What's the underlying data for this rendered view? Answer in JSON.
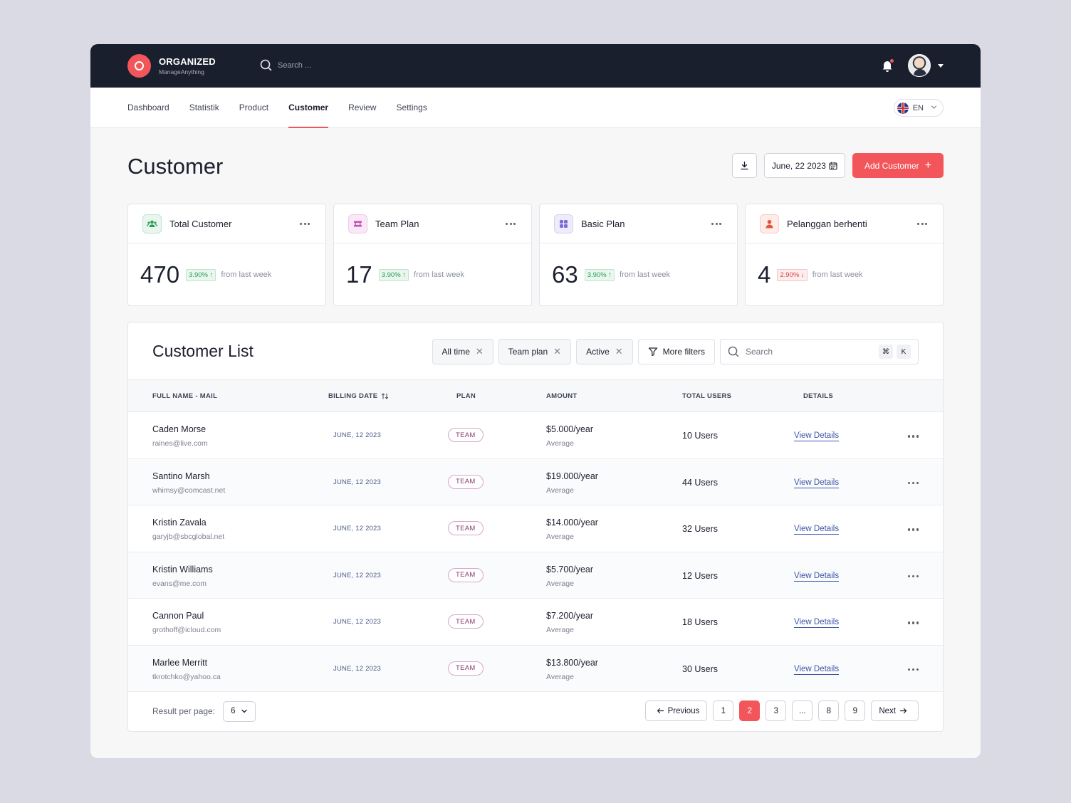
{
  "brand": {
    "name": "ORGANIZED",
    "tagline": "ManageAnything"
  },
  "topbar": {
    "search_placeholder": "Search ..."
  },
  "nav": {
    "tabs": [
      {
        "label": "Dashboard",
        "active": false
      },
      {
        "label": "Statistik",
        "active": false
      },
      {
        "label": "Product",
        "active": false
      },
      {
        "label": "Customer",
        "active": true
      },
      {
        "label": "Review",
        "active": false
      },
      {
        "label": "Settings",
        "active": false
      }
    ],
    "language": "EN"
  },
  "header": {
    "title": "Customer",
    "date": "June, 22 2023",
    "add_label": "Add Customer"
  },
  "stats": [
    {
      "title": "Total  Customer",
      "value": "470",
      "change": "3.90%",
      "direction": "up",
      "note": "from last week",
      "icon": "users-icon",
      "color": "#2a9d55",
      "bg": "#e9f6ee"
    },
    {
      "title": "Team Plan",
      "value": "17",
      "change": "3.90%",
      "direction": "up",
      "note": "from last week",
      "icon": "ticket-icon",
      "color": "#c74fb8",
      "bg": "#f9e8f6"
    },
    {
      "title": "Basic Plan",
      "value": "63",
      "change": "3.90%",
      "direction": "up",
      "note": "from last week",
      "icon": "grid-icon",
      "color": "#7d6bd6",
      "bg": "#eeebfa"
    },
    {
      "title": "Pelanggan berhenti",
      "value": "4",
      "change": "2.90%",
      "direction": "down",
      "note": "from last week",
      "icon": "user-icon",
      "color": "#e2533c",
      "bg": "#fdece8"
    }
  ],
  "list": {
    "title": "Customer List",
    "filters": [
      "All time",
      "Team plan",
      "Active"
    ],
    "more_filters": "More filters",
    "search_placeholder": "Search",
    "kbd": [
      "⌘",
      "K"
    ],
    "columns": [
      "FULL NAME - MAIL",
      "BILLING DATE",
      "PLAN",
      "AMOUNT",
      "TOTAL USERS",
      "DETAILS"
    ],
    "rows": [
      {
        "name": "Caden Morse",
        "mail": "raines@live.com",
        "date": "JUNE, 12 2023",
        "plan": "TEAM",
        "amount": "$5.000/year",
        "amount_note": "Average",
        "users": "10 Users",
        "details": "View Details"
      },
      {
        "name": "Santino Marsh",
        "mail": "whimsy@comcast.net",
        "date": "JUNE, 12 2023",
        "plan": "TEAM",
        "amount": "$19.000/year",
        "amount_note": "Average",
        "users": "44 Users",
        "details": "View Details"
      },
      {
        "name": "Kristin Zavala",
        "mail": "garyjb@sbcglobal.net",
        "date": "JUNE, 12 2023",
        "plan": "TEAM",
        "amount": "$14.000/year",
        "amount_note": "Average",
        "users": "32 Users",
        "details": "View Details"
      },
      {
        "name": "Kristin Williams",
        "mail": "evans@me.com",
        "date": "JUNE, 12 2023",
        "plan": "TEAM",
        "amount": "$5.700/year",
        "amount_note": "Average",
        "users": "12 Users",
        "details": "View Details"
      },
      {
        "name": "Cannon Paul",
        "mail": "grothoff@icloud.com",
        "date": "JUNE, 12 2023",
        "plan": "TEAM",
        "amount": "$7.200/year",
        "amount_note": "Average",
        "users": "18 Users",
        "details": "View Details"
      },
      {
        "name": "Marlee Merritt",
        "mail": "tkrotchko@yahoo.ca",
        "date": "JUNE, 12 2023",
        "plan": "TEAM",
        "amount": "$13.800/year",
        "amount_note": "Average",
        "users": "30 Users",
        "details": "View Details"
      }
    ]
  },
  "pagination": {
    "per_page_label": "Result per page:",
    "per_page": "6",
    "previous": "Previous",
    "next": "Next",
    "pages": [
      "1",
      "2",
      "3",
      "...",
      "8",
      "9"
    ],
    "current": "2"
  }
}
